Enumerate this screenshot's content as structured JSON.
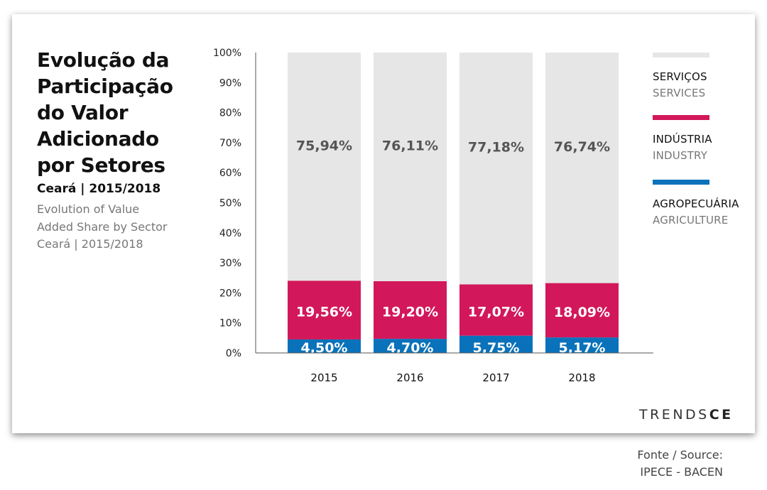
{
  "header": {
    "title_pt": "Evolução da Participação do Valor Adicionado por Setores",
    "subtitle": "Ceará | 2015/2018",
    "title_en_lines": [
      "Evolution of Value",
      "Added Share by Sector",
      "Ceará | 2015/2018"
    ]
  },
  "brand": {
    "text_light": "TRENDS",
    "text_bold": "CE"
  },
  "source": {
    "line1": "Fonte / Source:",
    "line2": "IPECE - BACEN"
  },
  "legend": [
    {
      "label_pt": "SERVIÇOS",
      "label_en": "SERVICES",
      "color": "#e6e6e6"
    },
    {
      "label_pt": "INDÚSTRIA",
      "label_en": "INDUSTRY",
      "color": "#d2185a"
    },
    {
      "label_pt": "AGROPECUÁRIA",
      "label_en": "AGRICULTURE",
      "color": "#0a72ba"
    }
  ],
  "chart_data": {
    "type": "bar",
    "stacked": true,
    "categories": [
      "2015",
      "2016",
      "2017",
      "2018"
    ],
    "ylim": [
      0,
      100
    ],
    "yticks": [
      "0%",
      "10%",
      "20%",
      "30%",
      "40%",
      "50%",
      "60%",
      "70%",
      "80%",
      "90%",
      "100%"
    ],
    "series": [
      {
        "name": "AGROPECUÁRIA",
        "color": "#0a72ba",
        "values": [
          4.5,
          4.7,
          5.75,
          5.17
        ],
        "labels": [
          "4,50%",
          "4,70%",
          "5,75%",
          "5,17%"
        ]
      },
      {
        "name": "INDÚSTRIA",
        "color": "#d2185a",
        "values": [
          19.56,
          19.2,
          17.07,
          18.09
        ],
        "labels": [
          "19,56%",
          "19,20%",
          "17,07%",
          "18,09%"
        ]
      },
      {
        "name": "SERVIÇOS",
        "color": "#e6e6e6",
        "values": [
          75.94,
          76.11,
          77.18,
          76.74
        ],
        "labels": [
          "75,94%",
          "76,11%",
          "77,18%",
          "76,74%"
        ]
      }
    ],
    "grid": false,
    "legend_position": "right"
  }
}
